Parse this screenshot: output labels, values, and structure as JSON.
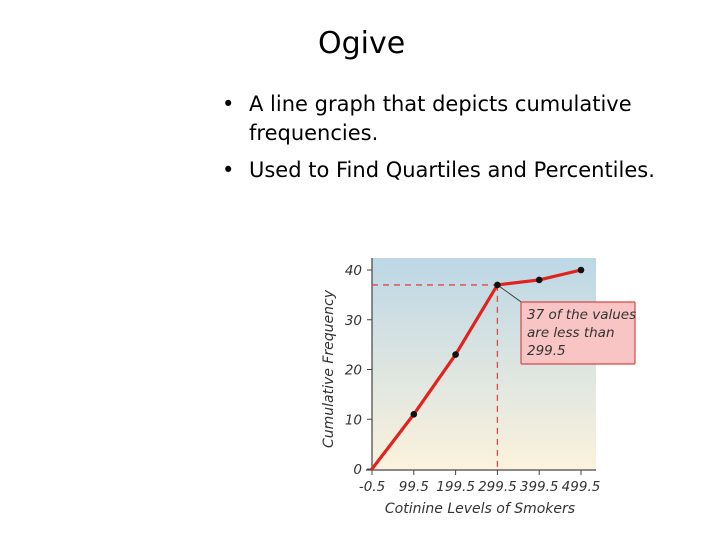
{
  "slide": {
    "title": "Ogive",
    "bullets": [
      "A line graph that depicts cumulative frequencies.",
      "Used to Find Quartiles and Percentiles."
    ],
    "bullet_symbol": "•"
  },
  "chart_data": {
    "type": "line",
    "title": "",
    "xlabel": "Cotinine Levels of Smokers",
    "ylabel": "Cumulative Frequency",
    "x": [
      -0.5,
      99.5,
      199.5,
      299.5,
      399.5,
      499.5
    ],
    "x_tick_labels": [
      "-0.5",
      "99.5",
      "199.5",
      "299.5",
      "399.5",
      "499.5"
    ],
    "series": [
      {
        "values": [
          0,
          11,
          23,
          37,
          38,
          40
        ]
      }
    ],
    "yticks": [
      0,
      10,
      20,
      30,
      40
    ],
    "ylim": [
      0,
      40
    ],
    "xlim": [
      -0.5,
      499.5
    ],
    "grid": false,
    "annotation": {
      "text_lines": [
        "37 of the values",
        "are less than",
        "299.5"
      ],
      "x": 299.5,
      "y": 37
    },
    "colors": {
      "line": "#e0231c",
      "marker": "#111111",
      "guide": "#d94a4a",
      "background_top": "#bcd7e6",
      "background_bottom": "#fbf2dc",
      "annotation_fill": "#f9c4c4",
      "annotation_border": "#d84848"
    }
  }
}
